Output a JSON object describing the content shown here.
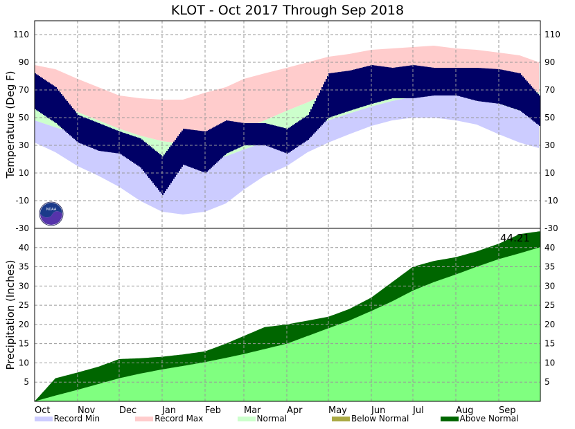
{
  "chart_data": [
    {
      "type": "area",
      "title": "KLOT - Oct 2017 Through Sep 2018",
      "ylabel": "Temperature (Deg F)",
      "ylim": [
        -30,
        120
      ],
      "yticks": [
        110,
        90,
        70,
        50,
        30,
        10,
        -10,
        -30
      ],
      "x_days": [
        0,
        15,
        31,
        46,
        61,
        76,
        92,
        107,
        123,
        138,
        151,
        166,
        182,
        197,
        212,
        227,
        243,
        258,
        273,
        288,
        304,
        319,
        335,
        350,
        364
      ],
      "series": [
        {
          "name": "Record Max",
          "color": "#ffcccc",
          "values": [
            88,
            85,
            78,
            72,
            66,
            64,
            63,
            63,
            68,
            72,
            78,
            82,
            86,
            90,
            94,
            96,
            99,
            100,
            101,
            102,
            100,
            99,
            97,
            95,
            90
          ]
        },
        {
          "name": "Normal High",
          "color": "#ccffcc",
          "values": [
            66,
            60,
            54,
            48,
            42,
            37,
            33,
            31,
            33,
            37,
            42,
            48,
            55,
            61,
            68,
            73,
            78,
            82,
            84,
            85,
            84,
            82,
            79,
            74,
            68
          ]
        },
        {
          "name": "Normal Low",
          "color": "#ccffcc",
          "values": [
            48,
            43,
            38,
            33,
            28,
            24,
            20,
            18,
            19,
            22,
            27,
            32,
            37,
            42,
            48,
            53,
            58,
            62,
            65,
            66,
            66,
            64,
            60,
            55,
            49
          ]
        },
        {
          "name": "Record Min",
          "color": "#ccccff",
          "values": [
            32,
            25,
            15,
            8,
            0,
            -10,
            -18,
            -20,
            -18,
            -12,
            -2,
            8,
            15,
            25,
            32,
            38,
            44,
            48,
            50,
            50,
            48,
            45,
            38,
            32,
            28
          ]
        },
        {
          "name": "Observed High",
          "color": "#000066",
          "values": [
            82,
            72,
            52,
            46,
            40,
            35,
            22,
            42,
            40,
            48,
            46,
            46,
            42,
            52,
            82,
            84,
            88,
            86,
            88,
            86,
            86,
            86,
            85,
            82,
            66
          ]
        },
        {
          "name": "Observed Low",
          "color": "#000066",
          "values": [
            56,
            46,
            32,
            26,
            24,
            14,
            -6,
            16,
            10,
            24,
            30,
            30,
            24,
            34,
            50,
            55,
            60,
            64,
            64,
            66,
            66,
            62,
            60,
            55,
            44
          ]
        }
      ]
    },
    {
      "type": "area",
      "ylabel": "Precipitation (Inches)",
      "ylim": [
        0,
        45
      ],
      "yticks": [
        40,
        35,
        30,
        25,
        20,
        15,
        10,
        5
      ],
      "x_days": [
        0,
        15,
        31,
        46,
        61,
        76,
        92,
        107,
        123,
        138,
        151,
        166,
        182,
        197,
        212,
        227,
        243,
        258,
        273,
        288,
        304,
        319,
        335,
        350,
        364
      ],
      "series": [
        {
          "name": "Observed",
          "color": "#006600",
          "values": [
            0,
            6,
            7.5,
            9,
            11,
            11.2,
            11.6,
            12.2,
            13,
            15,
            17,
            19.3,
            20,
            21,
            22,
            24,
            27,
            31,
            35,
            36.5,
            37.5,
            39,
            41,
            43.5,
            44.21
          ]
        },
        {
          "name": "Normal",
          "color": "#80ff80",
          "values": [
            0,
            1.5,
            3,
            4.5,
            6,
            7.2,
            8.3,
            9.2,
            10.2,
            11.3,
            12.3,
            13.6,
            15,
            17,
            19,
            21,
            23.5,
            26,
            28.8,
            31,
            33,
            35,
            37,
            38.5,
            40
          ]
        }
      ],
      "annotation": "44.21"
    }
  ],
  "months": [
    "Oct",
    "Nov",
    "Dec",
    "Jan",
    "Feb",
    "Mar",
    "Apr",
    "May",
    "Jun",
    "Jul",
    "Aug",
    "Sep"
  ],
  "month_days": [
    0,
    31,
    61,
    92,
    123,
    151,
    182,
    212,
    243,
    273,
    304,
    335
  ],
  "legend": [
    {
      "label": "Record Min",
      "color": "#ccccff"
    },
    {
      "label": "Record Max",
      "color": "#ffcccc"
    },
    {
      "label": "Normal",
      "color": "#ccffcc"
    },
    {
      "label": "Below Normal",
      "color": "#aaaa44"
    },
    {
      "label": "Above Normal",
      "color": "#006600"
    }
  ],
  "logo_text": "NOAA"
}
